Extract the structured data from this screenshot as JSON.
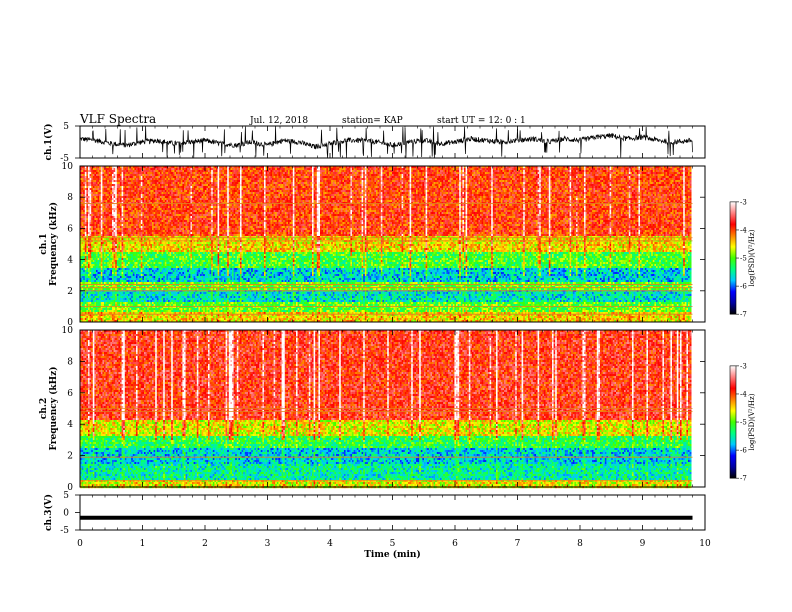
{
  "header": {
    "title": "VLF Spectra",
    "date": "Jul. 12, 2018",
    "station": "station= KAP",
    "start": "start UT =  12: 0  : 1"
  },
  "chart_data": [
    {
      "type": "line",
      "panel": "ch1",
      "ylabel": "ch.1(V)",
      "ylim": [
        -5,
        5
      ],
      "y_ticks": [
        "5",
        "-5"
      ],
      "xlim": [
        0,
        10
      ],
      "series": [
        {
          "x": [
            0,
            0.25,
            0.5,
            0.75,
            1,
            1.25,
            1.5,
            1.75,
            2,
            2.25,
            2.5,
            2.75,
            3,
            3.25,
            3.5,
            3.75,
            4,
            4.25,
            4.5,
            4.75,
            5,
            5.25,
            5.5,
            5.75,
            6,
            6.25,
            6.5,
            6.75,
            7,
            7.25,
            7.5,
            7.75,
            8,
            8.25,
            8.5,
            8.75,
            9,
            9.25,
            9.5,
            9.8
          ],
          "values": [
            1,
            0.5,
            -0.5,
            -1,
            0,
            0.5,
            -0.5,
            0,
            0.5,
            -0.5,
            -1,
            0,
            -1,
            0.5,
            0,
            -1.5,
            -0.5,
            0.5,
            0.5,
            0,
            -1,
            0,
            0.5,
            -0.5,
            0,
            1,
            0.5,
            0,
            0.5,
            1,
            0,
            1,
            0.5,
            1.5,
            2,
            1,
            1.5,
            0.5,
            0,
            0.5
          ]
        }
      ]
    },
    {
      "type": "heatmap",
      "panel": "ch1",
      "ylabel": "ch.1 Frequency (kHz)",
      "ylim": [
        0,
        10
      ],
      "y_ticks": [
        "0",
        "2",
        "4",
        "6",
        "8",
        "10"
      ],
      "xlim": [
        0,
        10
      ],
      "colorbar": {
        "label": "log(PSD)(V²/Hz)",
        "range": [
          -7,
          -3
        ],
        "ticks": [
          "-3",
          "-4",
          "-5",
          "-6",
          "-7"
        ]
      },
      "bands": [
        {
          "from": 0.0,
          "to": 0.6,
          "level": -4.5
        },
        {
          "from": 0.6,
          "to": 1.3,
          "level": -5.0
        },
        {
          "from": 1.3,
          "to": 2.0,
          "level": -5.6
        },
        {
          "from": 2.0,
          "to": 2.6,
          "level": -5.0
        },
        {
          "from": 2.6,
          "to": 3.5,
          "level": -5.7
        },
        {
          "from": 3.5,
          "to": 4.5,
          "level": -5.1
        },
        {
          "from": 4.5,
          "to": 5.5,
          "level": -4.5
        },
        {
          "from": 5.5,
          "to": 10.0,
          "level": -3.9
        }
      ],
      "lines_khz": [
        0.5,
        1.0,
        2.0,
        2.2,
        2.4,
        5.2,
        5.4,
        7.6
      ]
    },
    {
      "type": "heatmap",
      "panel": "ch2",
      "ylabel": "ch.2 Frequency (kHz)",
      "ylim": [
        0,
        10
      ],
      "y_ticks": [
        "0",
        "2",
        "4",
        "6",
        "8",
        "10"
      ],
      "xlim": [
        0,
        10
      ],
      "colorbar": {
        "label": "log(PSD)(V²/Hz)",
        "range": [
          -7,
          -3
        ],
        "ticks": [
          "-3",
          "-4",
          "-5",
          "-6",
          "-7"
        ]
      },
      "bands": [
        {
          "from": 0.0,
          "to": 0.5,
          "level": -4.6
        },
        {
          "from": 0.5,
          "to": 1.5,
          "level": -5.5
        },
        {
          "from": 1.5,
          "to": 2.5,
          "level": -5.7
        },
        {
          "from": 2.5,
          "to": 3.3,
          "level": -5.2
        },
        {
          "from": 3.3,
          "to": 4.3,
          "level": -4.6
        },
        {
          "from": 4.3,
          "to": 10.0,
          "level": -3.8
        }
      ],
      "lines_khz": [
        0.4,
        1.9,
        4.8,
        5.0
      ]
    },
    {
      "type": "line",
      "panel": "ch3",
      "ylabel": "ch.3(V)",
      "ylim": [
        -5,
        5
      ],
      "y_ticks": [
        "5",
        "0",
        "-5"
      ],
      "xlim": [
        0,
        10
      ],
      "xlabel": "Time (min)",
      "x_ticks": [
        "0",
        "1",
        "2",
        "3",
        "4",
        "5",
        "6",
        "7",
        "8",
        "9",
        "10"
      ],
      "series": [
        {
          "x": [
            0,
            9.8
          ],
          "values": [
            -1.5,
            -1.5
          ]
        }
      ]
    }
  ],
  "colors": {
    "line": "#000000",
    "cb_stops": [
      "#000000",
      "#0000a0",
      "#0000ff",
      "#00c8ff",
      "#00ff80",
      "#40ff00",
      "#ffff00",
      "#ff8000",
      "#ff0000",
      "#ff8080",
      "#ffffff"
    ]
  }
}
